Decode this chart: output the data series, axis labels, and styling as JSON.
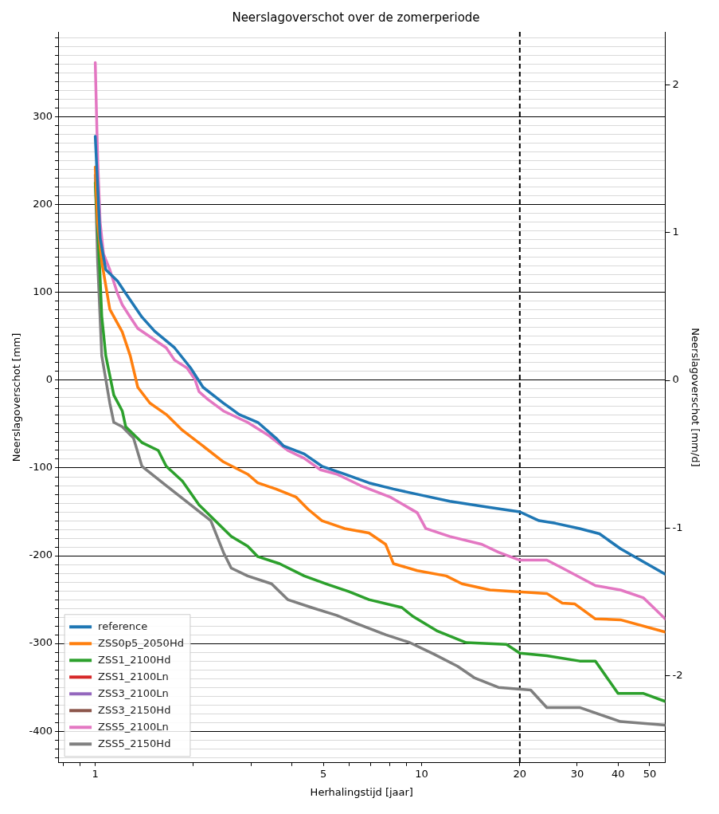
{
  "chart_data": {
    "type": "line",
    "title": "Neerslagoverschot over de zomerperiode",
    "xlabel": "Herhalingstijd [jaar]",
    "ylabel": "Neerslagoverschot [mm]",
    "y2label": "Neerslagoverschot [mm/d]",
    "log": "x",
    "grid": "y",
    "legend": "bottom left",
    "marker": "none",
    "line_style": "solid",
    "xlim": [
      0.77,
      55.8
    ],
    "xticks": [
      {
        "value": 0.8,
        "label": null
      },
      {
        "value": 0.9,
        "label": null
      },
      1,
      {
        "value": 2,
        "label": null
      },
      {
        "value": 3,
        "label": null
      },
      {
        "value": 4,
        "label": null
      },
      5,
      {
        "value": 6,
        "label": null
      },
      {
        "value": 7,
        "label": null
      },
      {
        "value": 8,
        "label": null
      },
      {
        "value": 9,
        "label": null
      },
      10,
      20,
      30,
      40,
      50
    ],
    "ylim": [
      -436,
      397
    ],
    "yticks": [
      {
        "value": -430,
        "label": null
      },
      {
        "value": -420,
        "label": null
      },
      {
        "value": -410,
        "label": null
      },
      -400,
      {
        "value": -390,
        "label": null
      },
      {
        "value": -380,
        "label": null
      },
      {
        "value": -370,
        "label": null
      },
      {
        "value": -360,
        "label": null
      },
      {
        "value": -350,
        "label": null
      },
      {
        "value": -340,
        "label": null
      },
      {
        "value": -330,
        "label": null
      },
      {
        "value": -320,
        "label": null
      },
      {
        "value": -310,
        "label": null
      },
      -300,
      {
        "value": -290,
        "label": null
      },
      {
        "value": -280,
        "label": null
      },
      {
        "value": -270,
        "label": null
      },
      {
        "value": -260,
        "label": null
      },
      {
        "value": -250,
        "label": null
      },
      {
        "value": -240,
        "label": null
      },
      {
        "value": -230,
        "label": null
      },
      {
        "value": -220,
        "label": null
      },
      {
        "value": -210,
        "label": null
      },
      -200,
      {
        "value": -190,
        "label": null
      },
      {
        "value": -180,
        "label": null
      },
      {
        "value": -170,
        "label": null
      },
      {
        "value": -160,
        "label": null
      },
      {
        "value": -150,
        "label": null
      },
      {
        "value": -140,
        "label": null
      },
      {
        "value": -130,
        "label": null
      },
      {
        "value": -120,
        "label": null
      },
      {
        "value": -110,
        "label": null
      },
      -100,
      {
        "value": -90,
        "label": null
      },
      {
        "value": -80,
        "label": null
      },
      {
        "value": -70,
        "label": null
      },
      {
        "value": -60,
        "label": null
      },
      {
        "value": -50,
        "label": null
      },
      {
        "value": -40,
        "label": null
      },
      {
        "value": -30,
        "label": null
      },
      {
        "value": -20,
        "label": null
      },
      {
        "value": -10,
        "label": null
      },
      0,
      {
        "value": 10,
        "label": null
      },
      {
        "value": 20,
        "label": null
      },
      {
        "value": 30,
        "label": null
      },
      {
        "value": 40,
        "label": null
      },
      {
        "value": 50,
        "label": null
      },
      {
        "value": 60,
        "label": null
      },
      {
        "value": 70,
        "label": null
      },
      {
        "value": 80,
        "label": null
      },
      {
        "value": 90,
        "label": null
      },
      100,
      {
        "value": 110,
        "label": null
      },
      {
        "value": 120,
        "label": null
      },
      {
        "value": 130,
        "label": null
      },
      {
        "value": 140,
        "label": null
      },
      {
        "value": 150,
        "label": null
      },
      {
        "value": 160,
        "label": null
      },
      {
        "value": 170,
        "label": null
      },
      {
        "value": 180,
        "label": null
      },
      {
        "value": 190,
        "label": null
      },
      200,
      {
        "value": 210,
        "label": null
      },
      {
        "value": 220,
        "label": null
      },
      {
        "value": 230,
        "label": null
      },
      {
        "value": 240,
        "label": null
      },
      {
        "value": 250,
        "label": null
      },
      {
        "value": 260,
        "label": null
      },
      {
        "value": 270,
        "label": null
      },
      {
        "value": 280,
        "label": null
      },
      {
        "value": 290,
        "label": null
      },
      300,
      {
        "value": 310,
        "label": null
      },
      {
        "value": 320,
        "label": null
      },
      {
        "value": 330,
        "label": null
      },
      {
        "value": 340,
        "label": null
      },
      {
        "value": 350,
        "label": null
      },
      {
        "value": 360,
        "label": null
      },
      {
        "value": 370,
        "label": null
      },
      {
        "value": 380,
        "label": null
      },
      {
        "value": 390,
        "label": null
      }
    ],
    "y2lim": [
      -2.59,
      2.36
    ],
    "y2ticks": [
      -2,
      -1,
      0,
      1,
      2
    ],
    "ref_lines": [
      {
        "axis": "x",
        "value": 20,
        "color": "#000000",
        "line_style": "dashed"
      }
    ],
    "series": [
      {
        "name": "reference",
        "color": "#1f77b4",
        "x": [
          1,
          1.035,
          1.077,
          1.17,
          1.24,
          1.39,
          1.52,
          1.75,
          1.96,
          2.14,
          2.47,
          2.76,
          3.15,
          3.58,
          3.78,
          4.37,
          4.95,
          5.81,
          6.9,
          8.2,
          10,
          12.2,
          16.2,
          20,
          22.9,
          25.7,
          30.5,
          35.1,
          40.7,
          55.8
        ],
        "values": [
          278,
          162,
          126,
          113,
          99,
          72,
          56,
          37,
          14,
          -8,
          -26,
          -39,
          -48,
          -66,
          -75,
          -84,
          -98,
          -107,
          -117,
          -124,
          -131,
          -138,
          -145,
          -150,
          -160,
          -163,
          -169,
          -175,
          -192,
          -221
        ]
      },
      {
        "name": "ZSS0p5_2050Hd",
        "color": "#ff7f0e",
        "x": [
          1,
          1.017,
          1.047,
          1.108,
          1.21,
          1.28,
          1.35,
          1.47,
          1.65,
          1.85,
          2.14,
          2.47,
          2.93,
          3.15,
          3.58,
          4.12,
          4.49,
          4.95,
          5.81,
          6.9,
          7.76,
          8.2,
          9.7,
          11.9,
          13.3,
          16.2,
          24.2,
          27,
          29.5,
          34.1,
          40.7,
          55.8
        ],
        "values": [
          243,
          180,
          135,
          81,
          55,
          28,
          -8,
          -26,
          -39,
          -57,
          -75,
          -93,
          -107,
          -117,
          -124,
          -133,
          -147,
          -160,
          -169,
          -174,
          -187,
          -209,
          -217,
          -223,
          -232,
          -239,
          -243,
          -254,
          -255,
          -272,
          -273,
          -287
        ]
      },
      {
        "name": "ZSS1_2100Hd",
        "color": "#2ca02c",
        "x": [
          1,
          1.03,
          1.047,
          1.077,
          1.14,
          1.21,
          1.24,
          1.39,
          1.56,
          1.65,
          1.85,
          2.08,
          2.33,
          2.61,
          2.93,
          3.15,
          3.67,
          4.37,
          5.1,
          6,
          6.9,
          8.7,
          9.4,
          11.2,
          13.7,
          18.2,
          20,
          24.2,
          30.5,
          34.1,
          40,
          47.9,
          55.8
        ],
        "values": [
          225,
          135,
          73,
          28,
          -17,
          -35,
          -53,
          -71,
          -80,
          -98,
          -115,
          -142,
          -160,
          -178,
          -189,
          -201,
          -209,
          -223,
          -232,
          -241,
          -250,
          -259,
          -269,
          -286,
          -299,
          -301,
          -311,
          -314,
          -320,
          -320,
          -357,
          -357,
          -366
        ]
      },
      {
        "name": "ZSS1_2100Ln",
        "color": "#d62728"
      },
      {
        "name": "ZSS3_2100Ln",
        "color": "#9467bd"
      },
      {
        "name": "ZSS3_2150Hd",
        "color": "#8c564b"
      },
      {
        "name": "ZSS5_2100Ln",
        "color": "#e377c2",
        "x": [
          1,
          1.017,
          1.035,
          1.06,
          1.108,
          1.17,
          1.21,
          1.28,
          1.35,
          1.52,
          1.65,
          1.75,
          1.91,
          2.02,
          2.08,
          2.2,
          2.47,
          2.93,
          3.37,
          3.89,
          4.37,
          4.9,
          5.5,
          6.5,
          8,
          9.7,
          10.3,
          12.2,
          15.3,
          17.2,
          20,
          24.2,
          27,
          34.1,
          40.7,
          47.9,
          55.8
        ],
        "values": [
          362,
          252,
          180,
          144,
          126,
          99,
          86,
          72,
          59,
          46,
          37,
          23,
          14,
          1,
          -13,
          -21,
          -35,
          -48,
          -62,
          -80,
          -89,
          -102,
          -107,
          -120,
          -133,
          -151,
          -169,
          -178,
          -187,
          -196,
          -205,
          -205,
          -214,
          -234,
          -239,
          -248,
          -272
        ]
      },
      {
        "name": "ZSS5_2150Hd",
        "color": "#7f7f7f",
        "x": [
          1,
          1.017,
          1.047,
          1.108,
          1.14,
          1.21,
          1.31,
          1.39,
          1.65,
          1.96,
          2.26,
          2.47,
          2.61,
          2.93,
          3.47,
          3.89,
          4.6,
          5.5,
          6.3,
          7.76,
          9.2,
          10.9,
          12.9,
          14.5,
          17.2,
          21.6,
          24.2,
          30.5,
          40.7,
          55.8
        ],
        "values": [
          234,
          135,
          28,
          -26,
          -48,
          -53,
          -66,
          -98,
          -120,
          -142,
          -160,
          -196,
          -214,
          -223,
          -232,
          -250,
          -259,
          -268,
          -277,
          -290,
          -299,
          -312,
          -326,
          -339,
          -350,
          -353,
          -373,
          -373,
          -389,
          -393
        ]
      }
    ]
  }
}
